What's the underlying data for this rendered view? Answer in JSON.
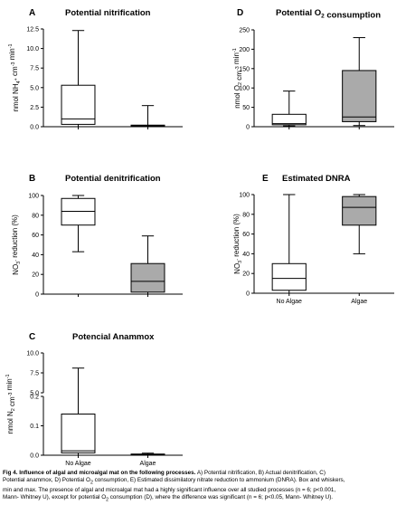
{
  "chart_data": [
    {
      "id": "A",
      "type": "boxplot",
      "panel_letter": "A",
      "title": "Potential nitrification",
      "ylabel_parts": [
        "nmol NH",
        "4",
        "+",
        " cm",
        "-3",
        " min",
        "-1"
      ],
      "ylim": [
        0,
        12.5
      ],
      "yticks": [
        0.0,
        2.5,
        5.0,
        7.5,
        10.0,
        12.5
      ],
      "ytick_labels": [
        "0.0",
        "2.5",
        "5.0",
        "7.5",
        "10.0",
        "12.5"
      ],
      "categories": [
        "No Algae",
        "Algae"
      ],
      "show_xticklabels": false,
      "boxes": [
        {
          "category": "No Algae",
          "min": 0.0,
          "q1": 0.3,
          "median": 1.0,
          "q3": 5.3,
          "max": 12.3,
          "fill": "#ffffff"
        },
        {
          "category": "Algae",
          "min": 0.0,
          "q1": 0.05,
          "median": 0.12,
          "q3": 0.2,
          "max": 2.7,
          "fill": "#aaaaaa"
        }
      ]
    },
    {
      "id": "D",
      "type": "boxplot",
      "panel_letter": "D",
      "title_parts": [
        "Potential O",
        "2",
        " consumption"
      ],
      "ylabel_parts": [
        "nmol O",
        "2",
        " cm",
        "-3",
        " min",
        "-1"
      ],
      "ylim": [
        0,
        250
      ],
      "yticks": [
        0,
        50,
        100,
        150,
        200,
        250
      ],
      "ytick_labels": [
        "0",
        "50",
        "100",
        "150",
        "200",
        "250"
      ],
      "categories": [
        "No Algae",
        "Algae"
      ],
      "show_xticklabels": false,
      "boxes": [
        {
          "category": "No Algae",
          "min": 2,
          "q1": 5,
          "median": 8,
          "q3": 32,
          "max": 92,
          "fill": "#ffffff"
        },
        {
          "category": "Algae",
          "min": 3,
          "q1": 13,
          "median": 25,
          "q3": 145,
          "max": 230,
          "fill": "#aaaaaa"
        }
      ]
    },
    {
      "id": "B",
      "type": "boxplot",
      "panel_letter": "B",
      "title": "Potential denitrification",
      "ylabel_parts": [
        "NO",
        "3",
        "-",
        " reduction (%)"
      ],
      "ylim": [
        0,
        100
      ],
      "yticks": [
        0,
        20,
        40,
        60,
        80,
        100
      ],
      "ytick_labels": [
        "0",
        "20",
        "40",
        "60",
        "80",
        "100"
      ],
      "categories": [
        "No Algae",
        "Algae"
      ],
      "show_xticklabels": false,
      "boxes": [
        {
          "category": "No Algae",
          "min": 43,
          "q1": 70,
          "median": 84,
          "q3": 97,
          "max": 100,
          "fill": "#ffffff"
        },
        {
          "category": "Algae",
          "min": 0,
          "q1": 2,
          "median": 13,
          "q3": 31,
          "max": 59,
          "fill": "#aaaaaa"
        }
      ]
    },
    {
      "id": "E",
      "type": "boxplot",
      "panel_letter": "E",
      "title": "Estimated DNRA",
      "ylabel_parts": [
        "NO",
        "3",
        "-",
        " reduction (%)"
      ],
      "ylim": [
        0,
        100
      ],
      "yticks": [
        0,
        20,
        40,
        60,
        80,
        100
      ],
      "ytick_labels": [
        "0",
        "20",
        "40",
        "60",
        "80",
        "100"
      ],
      "categories": [
        "No Algae",
        "Algae"
      ],
      "show_xticklabels": true,
      "boxes": [
        {
          "category": "No Algae",
          "min": 0,
          "q1": 3,
          "median": 15,
          "q3": 30,
          "max": 100,
          "fill": "#ffffff"
        },
        {
          "category": "Algae",
          "min": 40,
          "q1": 69,
          "median": 87,
          "q3": 98,
          "max": 100,
          "fill": "#aaaaaa"
        }
      ]
    },
    {
      "id": "C",
      "type": "boxplot",
      "panel_letter": "C",
      "title": "Potencial Anammox",
      "ylabel_parts": [
        "nmol N",
        "2",
        " cm",
        "-3",
        " min",
        "-1"
      ],
      "broken_axis": true,
      "lower_ylim": [
        0,
        0.2
      ],
      "upper_ylim": [
        5.0,
        10.0
      ],
      "lower_yticks": [
        0.0,
        0.1,
        0.2
      ],
      "lower_ytick_labels": [
        "0.0",
        "0.1",
        "0.2"
      ],
      "upper_yticks": [
        5.0,
        7.5,
        10.0
      ],
      "upper_ytick_labels": [
        "5.0",
        "7.5",
        "10.0"
      ],
      "categories": [
        "No Algae",
        "Algae"
      ],
      "show_xticklabels": true,
      "boxes": [
        {
          "category": "No Algae",
          "min": 0.0,
          "q1": 0.008,
          "median": 0.015,
          "q3": 0.14,
          "max": 8.1,
          "fill": "#ffffff"
        },
        {
          "category": "Algae",
          "min": 0.0,
          "q1": 0.001,
          "median": 0.002,
          "q3": 0.004,
          "max": 0.007,
          "fill": "#aaaaaa"
        }
      ]
    }
  ],
  "caption": {
    "bold": "Fig 4. Influence of algal and microalgal mat on the following processes.",
    "line1_rest": " A) Potential nitrification, B) Actual denitrification, C)",
    "line2": "Potential anammox, D) Potential O",
    "line2_sub": "2",
    "line2_rest": " consumption, E) Estimated dissimilatory nitrate reduction to ammonium (DNRA). Box and whiskers,",
    "line3": "min and max. The presence of algal and microalgal mat had a highly significant influence over all studied processes (n = 6; p<0.001,",
    "line4": "Mann- Whitney U), except for potential O",
    "line4_sub": "2",
    "line4_rest": " consumption (D), where the difference was significant (n = 6; p<0.05, Mann- Whitney U)."
  }
}
